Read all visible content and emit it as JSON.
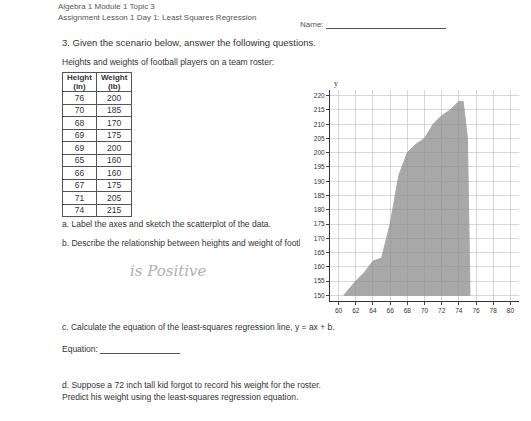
{
  "header": {
    "lines": [
      "Algebra 1 Module 1 Topic 3",
      "Assignment Lesson 1 Day 1: Least Squares Regression"
    ],
    "name_label": "Name:"
  },
  "question": "3. Given the scenario below, answer the following questions.",
  "caption": "Heights and weights of football players on a team roster:",
  "table": {
    "header": [
      "Height (in)",
      "Weight (lb)"
    ],
    "rows": [
      [
        76,
        200
      ],
      [
        70,
        185
      ],
      [
        68,
        170
      ],
      [
        69,
        175
      ],
      [
        69,
        200
      ],
      [
        65,
        160
      ],
      [
        66,
        160
      ],
      [
        67,
        175
      ],
      [
        71,
        205
      ],
      [
        74,
        215
      ]
    ]
  },
  "parts": {
    "a": "a. Label the axes and sketch the scatterplot of the data.",
    "b": "b. Describe the relationship between heights and weight of football players.",
    "b_answer": "is Positive",
    "c": "c. Calculate the equation of the least-squares regression line, y = ax + b.",
    "equation_label": "Equation:",
    "d": [
      "d. Suppose a 72 inch tall kid forgot to record his weight for the roster.",
      "Predict his weight using the least-squares regression equation."
    ]
  },
  "chart_data": {
    "type": "area",
    "axis_labels": {
      "y": "y"
    },
    "xlim": [
      59,
      81
    ],
    "xticks": [
      60,
      62,
      64,
      66,
      68,
      70,
      72,
      74,
      76,
      78,
      80
    ],
    "ylim": [
      148,
      222
    ],
    "yticks": [
      150,
      155,
      160,
      165,
      170,
      175,
      180,
      185,
      190,
      195,
      200,
      205,
      210,
      215,
      220
    ],
    "grid": true,
    "sketch": {
      "color": "#8c8c8c",
      "x": [
        60.6,
        62,
        63,
        64,
        65,
        66,
        67,
        68,
        69,
        70,
        71,
        72,
        73,
        74,
        74.5,
        75,
        75.3,
        60.6
      ],
      "y": [
        150,
        155,
        158,
        162,
        163,
        175,
        192,
        200,
        203,
        205,
        210,
        213,
        215,
        218,
        218,
        205,
        150,
        150
      ]
    }
  }
}
